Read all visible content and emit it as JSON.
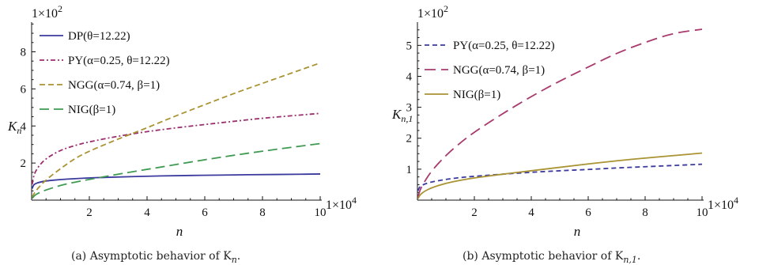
{
  "chart_data": [
    {
      "type": "line",
      "caption": "(a) Asymptotic behavior of K",
      "caption_sub": "n",
      "xlabel": "n",
      "ylabel": "K",
      "ylabel_sub": "n",
      "x_multiplier": "1×10",
      "x_multiplier_exp": "4",
      "y_multiplier": "1×10",
      "y_multiplier_exp": "2",
      "xlim": [
        0,
        10
      ],
      "ylim": [
        0,
        9.6
      ],
      "x_ticks": [
        2,
        4,
        6,
        8,
        10
      ],
      "y_ticks": [
        2,
        4,
        6,
        8
      ],
      "x": [
        0.02,
        0.05,
        0.1,
        0.25,
        0.5,
        1,
        1.5,
        2,
        3,
        4,
        5,
        6,
        7,
        8,
        9,
        10
      ],
      "series": [
        {
          "name": "DP(θ=12.22)",
          "color": "#3b3a9e",
          "dash": "",
          "values": [
            0.62,
            0.76,
            0.87,
            0.96,
            1.04,
            1.11,
            1.16,
            1.2,
            1.25,
            1.29,
            1.32,
            1.34,
            1.36,
            1.38,
            1.39,
            1.41
          ]
        },
        {
          "name": "PY(α=0.25, θ=12.22)",
          "color": "#9b2f6e",
          "dash": "6 3 2 3",
          "values": [
            0.85,
            1.15,
            1.45,
            1.85,
            2.25,
            2.7,
            2.95,
            3.15,
            3.45,
            3.7,
            3.9,
            4.08,
            4.25,
            4.42,
            4.55,
            4.68
          ]
        },
        {
          "name": "NGG(α=0.74, β=1)",
          "color": "#a99332",
          "dash": "7 4",
          "values": [
            0.15,
            0.25,
            0.4,
            0.7,
            1.1,
            1.7,
            2.25,
            2.65,
            3.3,
            3.9,
            4.55,
            5.15,
            5.75,
            6.3,
            6.85,
            7.4
          ]
        },
        {
          "name": "NIG(β=1)",
          "color": "#3f9a52",
          "dash": "12 6",
          "values": [
            0.1,
            0.15,
            0.25,
            0.4,
            0.55,
            0.8,
            0.97,
            1.12,
            1.4,
            1.66,
            1.92,
            2.18,
            2.42,
            2.64,
            2.85,
            3.05
          ]
        }
      ],
      "legend": "top-left",
      "grid": false
    },
    {
      "type": "line",
      "caption": "(b) Asymptotic behavior of K",
      "caption_sub": "n,1",
      "xlabel": "n",
      "ylabel": "K",
      "ylabel_sub": "n,1",
      "x_multiplier": "1×10",
      "x_multiplier_exp": "4",
      "y_multiplier": "1×10",
      "y_multiplier_exp": "2",
      "xlim": [
        0,
        10
      ],
      "ylim": [
        0,
        5.75
      ],
      "x_ticks": [
        2,
        4,
        6,
        8,
        10
      ],
      "y_ticks": [
        1,
        2,
        3,
        4,
        5
      ],
      "x": [
        0.02,
        0.05,
        0.1,
        0.25,
        0.5,
        1,
        1.5,
        2,
        3,
        4,
        5,
        6,
        7,
        8,
        9,
        10
      ],
      "series": [
        {
          "name": "PY(α=0.25, θ=12.22)",
          "color": "#3b3a9e",
          "dash": "6 4",
          "values": [
            0.3,
            0.38,
            0.45,
            0.52,
            0.59,
            0.67,
            0.73,
            0.77,
            0.84,
            0.9,
            0.95,
            0.99,
            1.04,
            1.08,
            1.12,
            1.16
          ]
        },
        {
          "name": "NGG(α=0.74, β=1)",
          "color": "#a83a6e",
          "dash": "14 7",
          "values": [
            0.1,
            0.2,
            0.35,
            0.6,
            0.95,
            1.45,
            1.85,
            2.2,
            2.8,
            3.35,
            3.85,
            4.3,
            4.75,
            5.1,
            5.4,
            5.52
          ]
        },
        {
          "name": "NIG(β=1)",
          "color": "#a99332",
          "dash": "",
          "values": [
            0.05,
            0.1,
            0.18,
            0.29,
            0.4,
            0.55,
            0.64,
            0.72,
            0.84,
            0.95,
            1.06,
            1.17,
            1.27,
            1.36,
            1.44,
            1.52
          ]
        }
      ],
      "legend": "top-left",
      "grid": false
    }
  ]
}
